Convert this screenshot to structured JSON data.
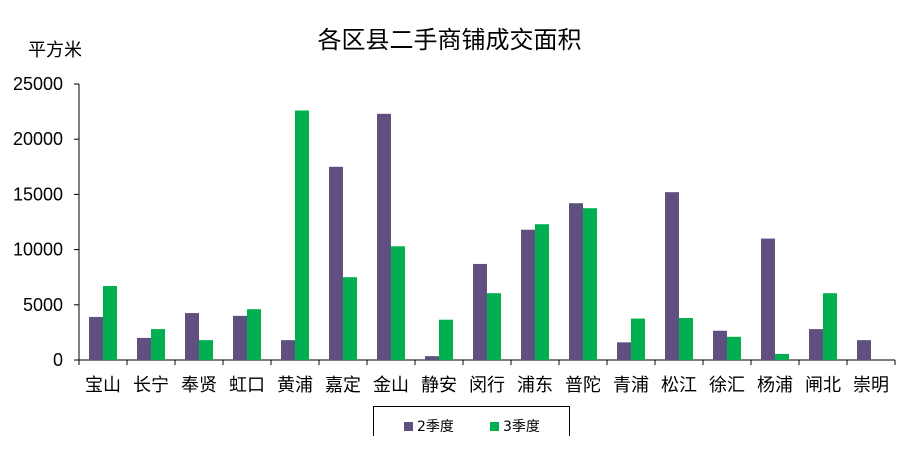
{
  "chart_data": {
    "type": "bar",
    "title": "各区县二手商铺成交面积",
    "ylabel": "平方米",
    "xlabel": "",
    "ylim": [
      0,
      25000
    ],
    "yticks": [
      0,
      5000,
      10000,
      15000,
      20000,
      25000
    ],
    "grid": false,
    "legend_position": "bottom",
    "categories": [
      "宝山",
      "长宁",
      "奉贤",
      "虹口",
      "黄浦",
      "嘉定",
      "金山",
      "静安",
      "闵行",
      "浦东",
      "普陀",
      "青浦",
      "松江",
      "徐汇",
      "杨浦",
      "闸北",
      "崇明"
    ],
    "series": [
      {
        "name": "2季度",
        "color": "#605080",
        "values": [
          3900,
          2000,
          4250,
          4000,
          1800,
          17500,
          22300,
          350,
          8700,
          11800,
          14200,
          1600,
          15200,
          2650,
          11000,
          2800,
          1800
        ]
      },
      {
        "name": "3季度",
        "color": "#00B050",
        "values": [
          6700,
          2800,
          1800,
          4600,
          22600,
          7500,
          10300,
          3650,
          6050,
          12300,
          13750,
          3750,
          3800,
          2100,
          550,
          6050,
          0
        ]
      }
    ]
  }
}
